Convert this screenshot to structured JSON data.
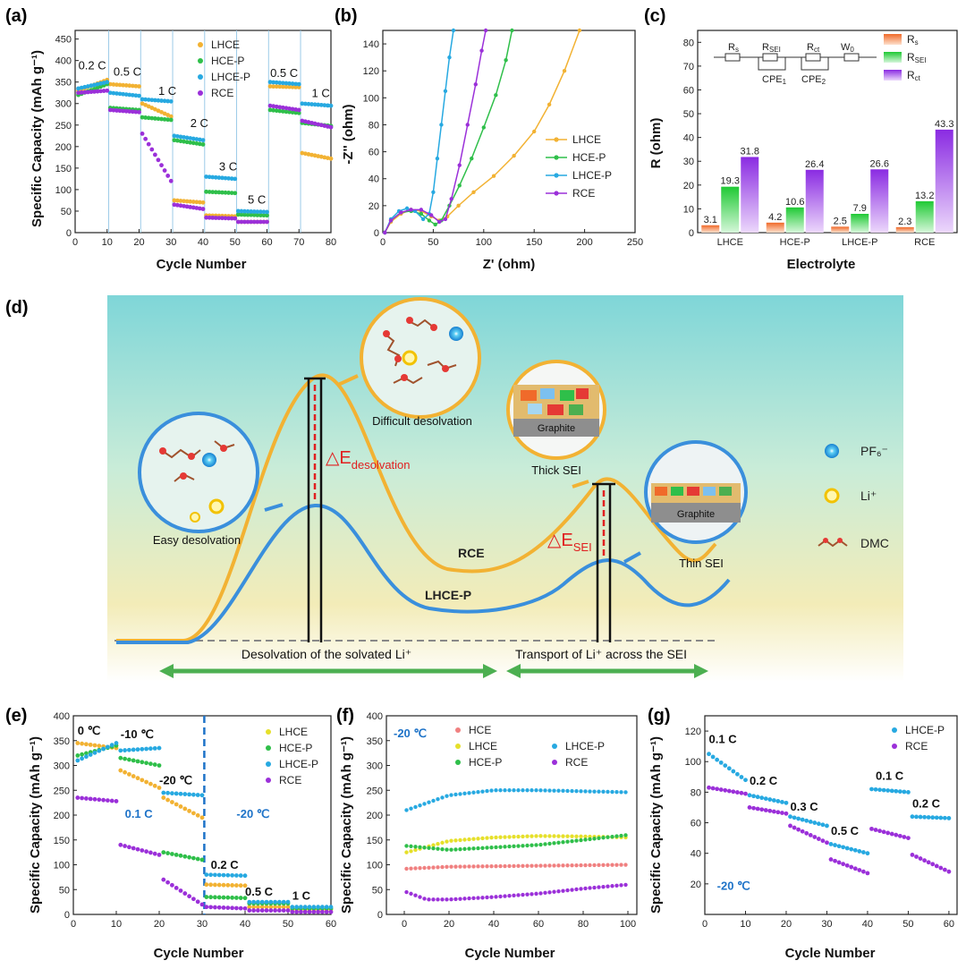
{
  "colors": {
    "lhce": "#f2b233",
    "hcep": "#2fbf4a",
    "lhcep": "#27a9e1",
    "rce": "#9b30d9",
    "hce": "#f08080",
    "lhce_yellow": "#e6e02a",
    "eblue": "#3a8fdc"
  },
  "panel_a": {
    "label": "(a)",
    "chart_data": {
      "type": "scatter",
      "xlabel": "Cycle Number",
      "ylabel": "Specific Capacity (mAh g⁻¹)",
      "xlim": [
        0,
        80
      ],
      "ylim": [
        0,
        470
      ],
      "xticks": [
        "0",
        "10",
        "20",
        "30",
        "40",
        "50",
        "60",
        "70",
        "80"
      ],
      "yticks": [
        "0",
        "50",
        "100",
        "150",
        "200",
        "250",
        "300",
        "350",
        "400",
        "450"
      ],
      "legend": [
        "LHCE",
        "HCE-P",
        "LHCE-P",
        "RCE"
      ],
      "legend_position": "top-right",
      "rate_labels": [
        "0.2 C",
        "0.5 C",
        "1 C",
        "2 C",
        "3 C",
        "5 C",
        "0.5 C",
        "1 C"
      ],
      "series": [
        {
          "name": "LHCE",
          "segments": [
            [
              1,
              10,
              330,
              355
            ],
            [
              11,
              20,
              345,
              340
            ],
            [
              21,
              30,
              300,
              270
            ],
            [
              31,
              40,
              75,
              70
            ],
            [
              41,
              50,
              40,
              38
            ],
            [
              51,
              60,
              25,
              25
            ],
            [
              61,
              70,
              340,
              338
            ],
            [
              71,
              80,
              185,
              172
            ]
          ]
        },
        {
          "name": "HCE-P",
          "segments": [
            [
              1,
              10,
              320,
              345
            ],
            [
              11,
              20,
              290,
              285
            ],
            [
              21,
              30,
              268,
              262
            ],
            [
              31,
              40,
              215,
              205
            ],
            [
              41,
              50,
              95,
              92
            ],
            [
              51,
              60,
              42,
              40
            ],
            [
              61,
              70,
              285,
              278
            ],
            [
              71,
              80,
              255,
              248
            ]
          ]
        },
        {
          "name": "LHCE-P",
          "segments": [
            [
              1,
              10,
              335,
              350
            ],
            [
              11,
              20,
              325,
              318
            ],
            [
              21,
              30,
              310,
              305
            ],
            [
              31,
              40,
              225,
              215
            ],
            [
              41,
              50,
              130,
              125
            ],
            [
              51,
              60,
              50,
              48
            ],
            [
              61,
              70,
              350,
              345
            ],
            [
              71,
              80,
              300,
              295
            ]
          ]
        },
        {
          "name": "RCE",
          "segments": [
            [
              1,
              10,
              325,
              330
            ],
            [
              11,
              20,
              285,
              280
            ],
            [
              21,
              30,
              230,
              120
            ],
            [
              31,
              40,
              65,
              55
            ],
            [
              41,
              50,
              35,
              33
            ],
            [
              51,
              60,
              25,
              25
            ],
            [
              61,
              70,
              295,
              285
            ],
            [
              71,
              80,
              260,
              245
            ]
          ]
        }
      ]
    }
  },
  "panel_b": {
    "label": "(b)",
    "chart_data": {
      "type": "line",
      "xlabel": "Z' (ohm)",
      "ylabel": "-Z'' (ohm)",
      "xlim": [
        0,
        250
      ],
      "ylim": [
        0,
        150
      ],
      "xticks": [
        "0",
        "50",
        "100",
        "150",
        "200",
        "250"
      ],
      "yticks": [
        "0",
        "20",
        "40",
        "60",
        "80",
        "100",
        "120",
        "140"
      ],
      "legend": [
        "LHCE",
        "HCE-P",
        "LHCE-P",
        "RCE"
      ],
      "legend_position": "right",
      "series": [
        {
          "name": "LHCE",
          "x": [
            2,
            8,
            18,
            28,
            38,
            48,
            56,
            64,
            75,
            90,
            110,
            130,
            150,
            165,
            180,
            195
          ],
          "y": [
            0,
            8,
            14,
            17,
            16,
            12,
            9,
            12,
            20,
            30,
            42,
            57,
            75,
            95,
            120,
            150
          ]
        },
        {
          "name": "HCE-P",
          "x": [
            2,
            8,
            18,
            28,
            38,
            46,
            52,
            58,
            66,
            76,
            88,
            100,
            112,
            122,
            128
          ],
          "y": [
            0,
            9,
            15,
            16,
            14,
            9,
            6,
            9,
            20,
            35,
            55,
            78,
            102,
            128,
            150
          ]
        },
        {
          "name": "LHCE-P",
          "x": [
            2,
            8,
            16,
            24,
            32,
            40,
            46,
            50,
            54,
            58,
            62,
            66,
            70
          ],
          "y": [
            0,
            10,
            16,
            18,
            16,
            10,
            14,
            30,
            55,
            80,
            105,
            130,
            150
          ]
        },
        {
          "name": "RCE",
          "x": [
            2,
            8,
            18,
            28,
            38,
            48,
            56,
            62,
            68,
            76,
            84,
            92,
            98,
            102
          ],
          "y": [
            0,
            9,
            15,
            17,
            17,
            13,
            8,
            10,
            25,
            50,
            80,
            110,
            135,
            150
          ]
        }
      ]
    }
  },
  "panel_c": {
    "label": "(c)",
    "chart_data": {
      "type": "bar",
      "xlabel": "Electrolyte",
      "ylabel": "R (ohm)",
      "ylim": [
        0,
        85
      ],
      "yticks": [
        "0",
        "10",
        "20",
        "30",
        "40",
        "50",
        "60",
        "70",
        "80"
      ],
      "categories": [
        "LHCE",
        "HCE-P",
        "LHCE-P",
        "RCE"
      ],
      "legend_position": "top-right",
      "series": [
        {
          "name": "R_s",
          "values": [
            3.1,
            4.2,
            2.5,
            2.3
          ]
        },
        {
          "name": "R_SEI",
          "values": [
            19.3,
            10.6,
            7.9,
            13.2
          ]
        },
        {
          "name": "R_ct",
          "values": [
            31.8,
            26.4,
            26.6,
            43.3
          ]
        }
      ],
      "value_labels": [
        [
          "3.1",
          "19.3",
          "31.8"
        ],
        [
          "4.2",
          "10.6",
          "26.4"
        ],
        [
          "2.5",
          "7.9",
          "26.6"
        ],
        [
          "2.3",
          "13.2",
          "43.3"
        ]
      ],
      "legend_entries": {
        "rs_main": "R",
        "rs_sub": "s",
        "rsei_main": "R",
        "rsei_sub": "SEI",
        "rct_main": "R",
        "rct_sub": "ct"
      },
      "circuit": {
        "r1_main": "R",
        "r1_sub": "s",
        "r2_main": "R",
        "r2_sub": "SEI",
        "r3_main": "R",
        "r3_sub": "ct",
        "w": "W",
        "w_sub": "0",
        "c1": "CPE",
        "c1_sub": "1",
        "c2": "CPE",
        "c2_sub": "2"
      }
    }
  },
  "panel_d": {
    "label": "(d)",
    "texts": {
      "difficult": "Difficult desolvation",
      "easy": "Easy desolvation",
      "thick": "Thick SEI",
      "thin": "Thin SEI",
      "graphite1": "Graphite",
      "graphite2": "Graphite",
      "de_main": "△E",
      "de_sub": "desolvation",
      "sei_main": "△E",
      "sei_sub": "SEI",
      "rce": "RCE",
      "lhcep": "LHCE-P",
      "arrow_left": "Desolvation of the solvated Li⁺",
      "arrow_right": "Transport of Li⁺ across the SEI",
      "leg_pf6": "PF₆⁻",
      "leg_li": "Li⁺",
      "leg_dmc": "DMC"
    }
  },
  "panel_e": {
    "label": "(e)",
    "chart_data": {
      "type": "scatter",
      "xlabel": "Cycle Number",
      "ylabel": "Specific Capacity (mAh g⁻¹)",
      "xlim": [
        0,
        60
      ],
      "ylim": [
        0,
        400
      ],
      "xticks": [
        "0",
        "10",
        "20",
        "30",
        "40",
        "50",
        "60"
      ],
      "yticks": [
        "0",
        "50",
        "100",
        "150",
        "200",
        "250",
        "300",
        "350",
        "400"
      ],
      "legend": [
        "LHCE",
        "HCE-P",
        "LHCE-P",
        "RCE"
      ],
      "legend_position": "top-right",
      "annotations": [
        "0 ℃",
        "-10 ℃",
        "-20 ℃",
        "0.1 C",
        "-20 ℃",
        "0.2 C",
        "0.5 C",
        "1 C"
      ],
      "series": [
        {
          "name": "LHCE",
          "segments": [
            [
              1,
              10,
              345,
              335
            ],
            [
              11,
              20,
              290,
              255
            ],
            [
              21,
              30,
              235,
              195
            ],
            [
              31,
              40,
              60,
              58
            ],
            [
              41,
              50,
              15,
              15
            ],
            [
              51,
              60,
              10,
              10
            ]
          ]
        },
        {
          "name": "HCE-P",
          "segments": [
            [
              1,
              10,
              320,
              340
            ],
            [
              11,
              20,
              315,
              300
            ],
            [
              21,
              30,
              125,
              110
            ],
            [
              31,
              40,
              35,
              33
            ],
            [
              41,
              50,
              22,
              22
            ],
            [
              51,
              60,
              12,
              12
            ]
          ]
        },
        {
          "name": "LHCE-P",
          "segments": [
            [
              1,
              10,
              310,
              345
            ],
            [
              11,
              20,
              330,
              335
            ],
            [
              21,
              30,
              245,
              240
            ],
            [
              31,
              40,
              80,
              78
            ],
            [
              41,
              50,
              25,
              25
            ],
            [
              51,
              60,
              15,
              15
            ]
          ]
        },
        {
          "name": "RCE",
          "segments": [
            [
              1,
              10,
              235,
              228
            ],
            [
              11,
              20,
              140,
              120
            ],
            [
              21,
              30,
              70,
              20
            ],
            [
              31,
              40,
              15,
              12
            ],
            [
              41,
              50,
              8,
              8
            ],
            [
              51,
              60,
              5,
              5
            ]
          ]
        }
      ]
    }
  },
  "panel_f": {
    "label": "(f)",
    "chart_data": {
      "type": "scatter",
      "xlabel": "Cycle Number",
      "ylabel": "Specific Capacity (mAh g⁻¹)",
      "xlim": [
        -8,
        104
      ],
      "ylim": [
        0,
        400
      ],
      "xticks": [
        "0",
        "20",
        "40",
        "60",
        "80",
        "100"
      ],
      "yticks": [
        "0",
        "50",
        "100",
        "150",
        "200",
        "250",
        "300",
        "350",
        "400"
      ],
      "legend": [
        "HCE",
        "LHCE",
        "HCE-P",
        "LHCE-P",
        "RCE"
      ],
      "legend_position": "top",
      "annotation": "-20 ℃",
      "series": [
        {
          "name": "HCE",
          "x": [
            1,
            20,
            40,
            60,
            80,
            100
          ],
          "y": [
            92,
            96,
            97,
            98,
            99,
            100
          ]
        },
        {
          "name": "LHCE",
          "x": [
            1,
            20,
            40,
            60,
            80,
            100
          ],
          "y": [
            125,
            148,
            155,
            158,
            157,
            155
          ]
        },
        {
          "name": "HCE-P",
          "x": [
            1,
            20,
            40,
            60,
            80,
            100
          ],
          "y": [
            138,
            130,
            135,
            140,
            150,
            160
          ]
        },
        {
          "name": "LHCE-P",
          "x": [
            1,
            20,
            40,
            60,
            80,
            100
          ],
          "y": [
            210,
            240,
            250,
            250,
            248,
            246
          ]
        },
        {
          "name": "RCE",
          "x": [
            1,
            10,
            20,
            40,
            60,
            80,
            100
          ],
          "y": [
            45,
            30,
            30,
            35,
            42,
            52,
            60
          ]
        }
      ]
    }
  },
  "panel_g": {
    "label": "(g)",
    "chart_data": {
      "type": "scatter",
      "xlabel": "Cycle Number",
      "ylabel": "Specific Capacity (mAh g⁻¹)",
      "xlim": [
        0,
        62
      ],
      "ylim": [
        0,
        130
      ],
      "xticks": [
        "0",
        "10",
        "20",
        "30",
        "40",
        "50",
        "60"
      ],
      "yticks": [
        "20",
        "40",
        "60",
        "80",
        "100",
        "120"
      ],
      "legend": [
        "LHCE-P",
        "RCE"
      ],
      "legend_position": "top-right",
      "annotations": [
        "0.1 C",
        "0.2 C",
        "0.3 C",
        "0.5 C",
        "0.1 C",
        "0.2 C",
        "-20 ℃"
      ],
      "series": [
        {
          "name": "LHCE-P",
          "segments": [
            [
              1,
              10,
              105,
              88
            ],
            [
              11,
              20,
              78,
              73
            ],
            [
              21,
              30,
              64,
              58
            ],
            [
              31,
              40,
              46,
              40
            ],
            [
              41,
              50,
              82,
              80
            ],
            [
              51,
              60,
              64,
              63
            ]
          ]
        },
        {
          "name": "RCE",
          "segments": [
            [
              1,
              10,
              83,
              79
            ],
            [
              11,
              20,
              70,
              66
            ],
            [
              21,
              30,
              58,
              47
            ],
            [
              31,
              40,
              36,
              27
            ],
            [
              41,
              50,
              56,
              50
            ],
            [
              51,
              60,
              39,
              28
            ]
          ]
        }
      ]
    }
  }
}
